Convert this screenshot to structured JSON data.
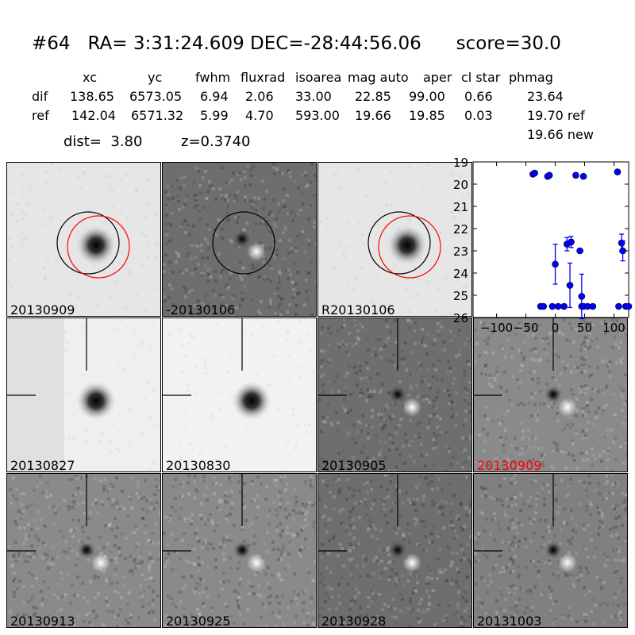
{
  "header": {
    "title": "#64   RA= 3:31:24.609 DEC=-28:44:56.06      score=30.0",
    "columns": [
      "xc",
      "yc",
      "fwhm",
      "fluxrad",
      "isoarea",
      "mag auto",
      "aper",
      "cl star",
      "phmag"
    ],
    "rows": [
      {
        "label": "dif",
        "values": [
          "138.65",
          "6573.05",
          "6.94",
          "2.06",
          "33.00",
          "22.85",
          "99.00",
          "0.66",
          "23.64"
        ]
      },
      {
        "label": "ref",
        "values": [
          "142.04",
          "6571.32",
          "5.99",
          "4.70",
          "593.00",
          "19.66",
          "19.85",
          "0.03",
          "19.70 ref"
        ]
      }
    ],
    "dist": "dist=  3.80",
    "z": "z=0.3740",
    "new_mag": "19.66 new"
  },
  "panels": [
    {
      "label": "20130909",
      "style": "star",
      "circles": true,
      "label_color": "#000000"
    },
    {
      "label": "-20130106",
      "style": "diff_dark",
      "circles_black_only": true,
      "label_color": "#000000"
    },
    {
      "label": "R20130106",
      "style": "star",
      "circles": true,
      "label_color": "#000000"
    },
    {
      "label": "20130827",
      "style": "star_masked",
      "crosshair": true,
      "label_color": "#000000"
    },
    {
      "label": "20130830",
      "style": "star_clean",
      "crosshair": true,
      "label_color": "#000000"
    },
    {
      "label": "20130905",
      "style": "diff_dark",
      "crosshair": true,
      "label_color": "#000000"
    },
    {
      "label": "20130909",
      "style": "diff",
      "crosshair": true,
      "label_color": "#ff0000"
    },
    {
      "label": "20130913",
      "style": "diff",
      "crosshair": true,
      "label_color": "#000000"
    },
    {
      "label": "20130925",
      "style": "diff",
      "crosshair": true,
      "label_color": "#000000"
    },
    {
      "label": "20130928",
      "style": "diff_dark",
      "crosshair": true,
      "label_color": "#000000"
    },
    {
      "label": "20131003",
      "style": "diff_noisy",
      "crosshair": true,
      "label_color": "#000000"
    }
  ],
  "chart_data": {
    "type": "scatter",
    "title": "",
    "xlabel": "",
    "ylabel": "",
    "xlim": [
      -140,
      125
    ],
    "ylim": [
      26,
      19
    ],
    "y_inverted": true,
    "xticks": [
      -100,
      -50,
      0,
      50,
      100
    ],
    "yticks": [
      19,
      20,
      21,
      22,
      23,
      24,
      25,
      26
    ],
    "color": "#0000ff",
    "series": [
      {
        "points": [
          {
            "x": -38,
            "y": 19.55
          },
          {
            "x": -35,
            "y": 19.5
          },
          {
            "x": -13,
            "y": 19.65
          },
          {
            "x": -10,
            "y": 19.6
          },
          {
            "x": 35,
            "y": 19.6
          },
          {
            "x": 48,
            "y": 19.65
          },
          {
            "x": 106,
            "y": 19.45
          },
          {
            "x": -25,
            "y": 25.5
          },
          {
            "x": -20,
            "y": 25.5
          },
          {
            "x": -5,
            "y": 25.5
          },
          {
            "x": 5,
            "y": 25.5
          },
          {
            "x": 15,
            "y": 25.5
          },
          {
            "x": 45,
            "y": 25.5
          },
          {
            "x": 48,
            "y": 25.5
          },
          {
            "x": 55,
            "y": 25.5
          },
          {
            "x": 64,
            "y": 25.5
          },
          {
            "x": 108,
            "y": 25.5
          },
          {
            "x": 120,
            "y": 25.5
          },
          {
            "x": 125,
            "y": 25.5
          },
          {
            "x": 0,
            "y": 23.6,
            "err": 0.9
          },
          {
            "x": 20,
            "y": 22.7,
            "err": 0.3
          },
          {
            "x": 27,
            "y": 22.6,
            "err": 0.25
          },
          {
            "x": 25,
            "y": 24.55,
            "err": 1.0
          },
          {
            "x": 42,
            "y": 23.0
          },
          {
            "x": 45,
            "y": 25.05,
            "err": 1.0
          },
          {
            "x": 113,
            "y": 22.65,
            "err": 0.4
          },
          {
            "x": 115,
            "y": 23.0,
            "err": 0.45
          }
        ]
      }
    ]
  }
}
